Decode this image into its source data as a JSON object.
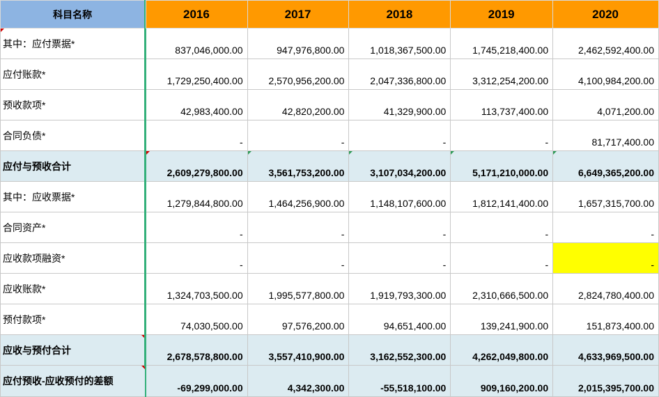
{
  "header": {
    "label": "科目名称",
    "years": [
      "2016",
      "2017",
      "2018",
      "2019",
      "2020"
    ]
  },
  "rows": [
    {
      "label": "其中：应付票据*",
      "values": [
        "837,046,000.00",
        "947,976,800.00",
        "1,018,367,500.00",
        "1,745,218,400.00",
        "2,462,592,400.00"
      ]
    },
    {
      "label": "应付账款*",
      "values": [
        "1,729,250,400.00",
        "2,570,956,200.00",
        "2,047,336,800.00",
        "3,312,254,200.00",
        "4,100,984,200.00"
      ]
    },
    {
      "label": "预收款项*",
      "values": [
        "42,983,400.00",
        "42,820,200.00",
        "41,329,900.00",
        "113,737,400.00",
        "4,071,200.00"
      ]
    },
    {
      "label": "合同负债*",
      "values": [
        "-",
        "-",
        "-",
        "-",
        "81,717,400.00"
      ]
    },
    {
      "label": "应付与预收合计",
      "values": [
        "2,609,279,800.00",
        "3,561,753,200.00",
        "3,107,034,200.00",
        "5,171,210,000.00",
        "6,649,365,200.00"
      ]
    },
    {
      "label": "其中：应收票据*",
      "values": [
        "1,279,844,800.00",
        "1,464,256,900.00",
        "1,148,107,600.00",
        "1,812,141,400.00",
        "1,657,315,700.00"
      ]
    },
    {
      "label": "合同资产*",
      "values": [
        "-",
        "-",
        "-",
        "-",
        "-"
      ]
    },
    {
      "label": "应收款项融资*",
      "values": [
        "-",
        "-",
        "-",
        "-",
        "-"
      ]
    },
    {
      "label": "应收账款*",
      "values": [
        "1,324,703,500.00",
        "1,995,577,800.00",
        "1,919,793,300.00",
        "2,310,666,500.00",
        "2,824,780,400.00"
      ]
    },
    {
      "label": "预付款项*",
      "values": [
        "74,030,500.00",
        "97,576,200.00",
        "94,651,400.00",
        "139,241,900.00",
        "151,873,400.00"
      ]
    },
    {
      "label": "应收与预付合计",
      "values": [
        "2,678,578,800.00",
        "3,557,410,900.00",
        "3,162,552,300.00",
        "4,262,049,800.00",
        "4,633,969,500.00"
      ]
    },
    {
      "label": "应付预收-应收预付的差额",
      "values": [
        "-69,299,000.00",
        "4,342,300.00",
        "-55,518,100.00",
        "909,160,200.00",
        "2,015,395,700.00"
      ]
    }
  ],
  "colors": {
    "header_label_bg": "#8db4e2",
    "header_year_bg": "#ff9900",
    "total_row_bg": "#dcebf1",
    "highlight_cell_bg": "#ffff00",
    "frozen_line": "#33b07a",
    "comment_marker": "#d40000"
  }
}
